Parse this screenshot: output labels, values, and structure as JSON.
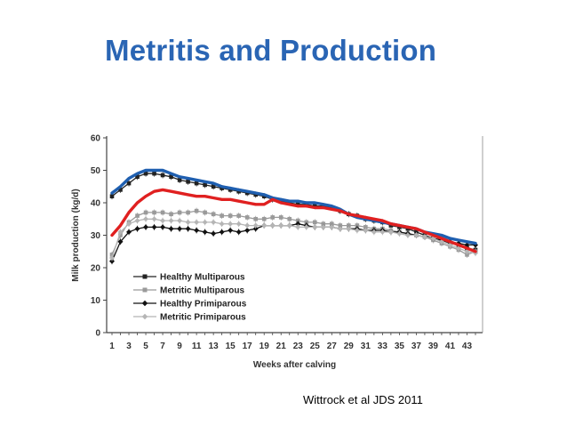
{
  "slide": {
    "title": "Metritis and Production",
    "citation": "Wittrock et al JDS 2011"
  },
  "colors": {
    "title": "#2a65b4",
    "healthy_multiparous": "#222222",
    "metritic_multiparous": "#9a9a9a",
    "healthy_primiparous": "#111111",
    "metritic_primiparous": "#b5b5b5",
    "blue_overlay": "#1f5fb0",
    "red_overlay": "#e02020"
  },
  "chart_data": {
    "type": "line",
    "xlabel": "Weeks after calving",
    "ylabel": "Milk production (kg/d)",
    "xlim": [
      1,
      44
    ],
    "ylim": [
      0,
      60
    ],
    "x_tick_labels": [
      "1",
      "3",
      "5",
      "7",
      "9",
      "11",
      "13",
      "15",
      "17",
      "19",
      "21",
      "23",
      "25",
      "27",
      "29",
      "31",
      "33",
      "35",
      "37",
      "39",
      "41",
      "43"
    ],
    "y_tick_labels": [
      "0",
      "10",
      "20",
      "30",
      "40",
      "50",
      "60"
    ],
    "legend_position": "lower-left",
    "series": [
      {
        "name": "Healthy Multiparous",
        "color": "#222222",
        "marker": "square",
        "x": [
          1,
          2,
          3,
          4,
          5,
          6,
          7,
          8,
          9,
          10,
          11,
          12,
          13,
          14,
          15,
          16,
          17,
          18,
          19,
          20,
          21,
          22,
          23,
          24,
          25,
          26,
          27,
          28,
          29,
          30,
          31,
          32,
          33,
          34,
          35,
          36,
          37,
          38,
          39,
          40,
          41,
          42,
          43,
          44
        ],
        "values": [
          42,
          44,
          46,
          48,
          49,
          49,
          48.5,
          48,
          47,
          46.5,
          46,
          45.5,
          45,
          44.5,
          44,
          43.5,
          43,
          42.5,
          42,
          41,
          40.5,
          40,
          39.5,
          39.5,
          39,
          39,
          38.5,
          37.5,
          36.5,
          36,
          35,
          34.5,
          34,
          33,
          32.5,
          32,
          31,
          30,
          29,
          28.5,
          27.5,
          27,
          26,
          25.5
        ]
      },
      {
        "name": "Metritic Multiparous",
        "color": "#9a9a9a",
        "marker": "square",
        "x": [
          1,
          2,
          3,
          4,
          5,
          6,
          7,
          8,
          9,
          10,
          11,
          12,
          13,
          14,
          15,
          16,
          17,
          18,
          19,
          20,
          21,
          22,
          23,
          24,
          25,
          26,
          27,
          28,
          29,
          30,
          31,
          32,
          33,
          34,
          35,
          36,
          37,
          38,
          39,
          40,
          41,
          42,
          43,
          44
        ],
        "values": [
          24,
          30,
          34,
          36,
          37,
          37,
          37,
          36.5,
          37,
          37,
          37.5,
          37,
          36.5,
          36,
          36,
          36,
          35.5,
          35,
          35,
          35.5,
          35.5,
          35,
          34.5,
          34,
          34,
          33.5,
          33.5,
          33,
          33,
          33,
          32.5,
          32,
          32,
          31.5,
          31,
          30.5,
          30,
          29.5,
          28.5,
          27.5,
          26.5,
          25.5,
          24,
          25
        ]
      },
      {
        "name": "Healthy Primiparous",
        "color": "#111111",
        "marker": "diamond",
        "x": [
          1,
          2,
          3,
          4,
          5,
          6,
          7,
          8,
          9,
          10,
          11,
          12,
          13,
          14,
          15,
          16,
          17,
          18,
          19,
          20,
          21,
          22,
          23,
          24,
          25,
          26,
          27,
          28,
          29,
          30,
          31,
          32,
          33,
          34,
          35,
          36,
          37,
          38,
          39,
          40,
          41,
          42,
          43,
          44
        ],
        "values": [
          22,
          28,
          31,
          32,
          32.5,
          32.5,
          32.5,
          32,
          32,
          32,
          31.5,
          31,
          30.5,
          31,
          31.5,
          31,
          31.5,
          32,
          33,
          33,
          33,
          33,
          33.5,
          33,
          32.5,
          32.5,
          32.5,
          32,
          32,
          32,
          31.5,
          31.5,
          31.5,
          31,
          31,
          30.5,
          30,
          29.5,
          29,
          28.5,
          28,
          27.5,
          27,
          27
        ]
      },
      {
        "name": "Metritic Primiparous",
        "color": "#b5b5b5",
        "marker": "diamond",
        "x": [
          1,
          2,
          3,
          4,
          5,
          6,
          7,
          8,
          9,
          10,
          11,
          12,
          13,
          14,
          15,
          16,
          17,
          18,
          19,
          20,
          21,
          22,
          23,
          24,
          25,
          26,
          27,
          28,
          29,
          30,
          31,
          32,
          33,
          34,
          35,
          36,
          37,
          38,
          39,
          40,
          41,
          42,
          43,
          44
        ],
        "values": [
          23,
          31,
          33.5,
          34.5,
          35,
          35,
          34.5,
          34.5,
          34.5,
          34,
          34,
          34,
          34,
          33.5,
          33.5,
          33.5,
          33,
          33,
          33,
          33,
          33,
          33,
          32.5,
          32.5,
          32.5,
          32.5,
          32.5,
          32,
          32,
          31.5,
          31.5,
          31,
          31,
          31,
          30.5,
          30,
          30,
          29.5,
          29,
          28,
          27,
          26,
          25,
          24.5
        ]
      },
      {
        "color": "#1f5fb0",
        "x": [
          1,
          2,
          3,
          4,
          5,
          6,
          7,
          8,
          9,
          10,
          11,
          12,
          13,
          14,
          15,
          16,
          17,
          18,
          19,
          20,
          21,
          22,
          23,
          24,
          25,
          26,
          27,
          28,
          29,
          30,
          31,
          32,
          33,
          34,
          35,
          36,
          37,
          38,
          39,
          40,
          41,
          42,
          43,
          44
        ],
        "values": [
          43,
          45,
          47.5,
          49,
          50,
          50,
          50,
          49,
          48,
          47.5,
          47,
          46.5,
          46,
          45,
          44.5,
          44,
          43.5,
          43,
          42.5,
          41.5,
          41,
          40.5,
          40.5,
          40,
          40,
          39.5,
          39,
          38,
          36.5,
          35.5,
          35,
          34.5,
          34,
          33.5,
          33,
          32.5,
          32,
          31,
          30.5,
          30,
          29,
          28.5,
          28,
          27.5
        ]
      },
      {
        "color": "#e02020",
        "x": [
          1,
          2,
          3,
          4,
          5,
          6,
          7,
          8,
          9,
          10,
          11,
          12,
          13,
          14,
          15,
          16,
          17,
          18,
          19,
          20,
          21,
          22,
          23,
          24,
          25,
          26,
          27,
          28,
          29,
          30,
          31,
          32,
          33,
          34,
          35,
          36,
          37,
          38,
          39,
          40,
          41,
          42,
          43,
          44
        ],
        "values": [
          30,
          33,
          37,
          40,
          42,
          43.5,
          44,
          43.5,
          43,
          42.5,
          42,
          42,
          41.5,
          41,
          41,
          40.5,
          40,
          39.5,
          39.5,
          41,
          40,
          39.5,
          39,
          39,
          38.5,
          38.5,
          38,
          37.5,
          36.5,
          36,
          35.5,
          35,
          34.5,
          33.5,
          33,
          32.5,
          32,
          31,
          30,
          29,
          28,
          27,
          26,
          25
        ]
      }
    ]
  }
}
